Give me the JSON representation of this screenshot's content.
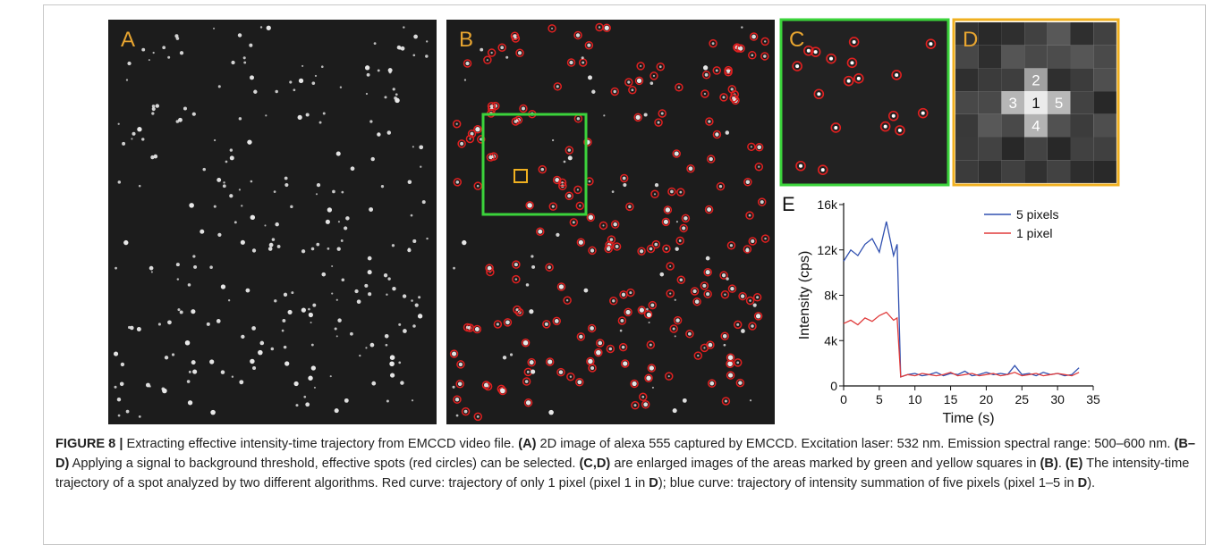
{
  "panels": {
    "a": "A",
    "b": "B",
    "c": "C",
    "d": "D",
    "e": "E"
  },
  "pixel_labels": [
    "1",
    "2",
    "3",
    "4",
    "5"
  ],
  "chart_data": {
    "type": "line",
    "xlabel": "Time (s)",
    "ylabel": "Intensity (cps)",
    "x": [
      0,
      1,
      2,
      3,
      4,
      5,
      6,
      7,
      7.5,
      8,
      9,
      10,
      11,
      12,
      13,
      14,
      15,
      16,
      17,
      18,
      19,
      20,
      21,
      22,
      23,
      24,
      25,
      26,
      27,
      28,
      29,
      30,
      31,
      32,
      33
    ],
    "series": [
      {
        "name": "5 pixels",
        "color": "#3050b0",
        "values": [
          11000,
          12000,
          11500,
          12500,
          13000,
          11800,
          14500,
          11500,
          12500,
          800,
          1000,
          1100,
          900,
          1000,
          1200,
          900,
          1100,
          1000,
          1300,
          900,
          1000,
          1200,
          1000,
          1100,
          1000,
          1800,
          1000,
          1100,
          900,
          1200,
          1000,
          1100,
          900,
          1000,
          1600
        ]
      },
      {
        "name": "1 pixel",
        "color": "#e03c3c",
        "values": [
          5500,
          5800,
          5400,
          6000,
          5700,
          6200,
          6500,
          5800,
          6000,
          800,
          1000,
          900,
          1100,
          1000,
          900,
          1000,
          1200,
          900,
          1000,
          1100,
          900,
          1000,
          1100,
          900,
          1000,
          1200,
          900,
          1000,
          1100,
          900,
          1000,
          1100,
          1000,
          900,
          1200
        ]
      }
    ],
    "xlim": [
      0,
      35
    ],
    "xticks": [
      0,
      5,
      10,
      15,
      20,
      25,
      30,
      35
    ],
    "ylim": [
      0,
      16000
    ],
    "yticks": [
      0,
      {
        "value": 4000,
        "label": "4k"
      },
      {
        "value": 8000,
        "label": "8k"
      },
      {
        "value": 12000,
        "label": "12k"
      },
      {
        "value": 16000,
        "label": "16k"
      }
    ],
    "legend": "upper right"
  },
  "caption": [
    {
      "text": "FIGURE 8 |",
      "bold": true
    },
    {
      "text": " Extracting effective intensity-time trajectory from EMCCD video file. ",
      "bold": false
    },
    {
      "text": "(A)",
      "bold": true
    },
    {
      "text": " 2D image of alexa 555 captured by EMCCD. Excitation laser: 532 nm. Emission spectral range: 500–600 nm. ",
      "bold": false
    },
    {
      "text": "(B–D)",
      "bold": true
    },
    {
      "text": " Applying a signal to background threshold, effective spots (red circles) can be selected. ",
      "bold": false
    },
    {
      "text": "(C,D)",
      "bold": true
    },
    {
      "text": " are enlarged images of the areas marked by green and yellow squares in ",
      "bold": false
    },
    {
      "text": "(B)",
      "bold": true
    },
    {
      "text": ". ",
      "bold": false
    },
    {
      "text": "(E)",
      "bold": true
    },
    {
      "text": " The intensity-time trajectory of a spot analyzed by two different algorithms. Red curve: trajectory of only 1 pixel (pixel 1 in ",
      "bold": false
    },
    {
      "text": "D",
      "bold": true
    },
    {
      "text": "); blue curve: trajectory of intensity summation of five pixels (pixel 1–5 in ",
      "bold": false
    },
    {
      "text": "D",
      "bold": true
    },
    {
      "text": ").",
      "bold": false
    }
  ]
}
